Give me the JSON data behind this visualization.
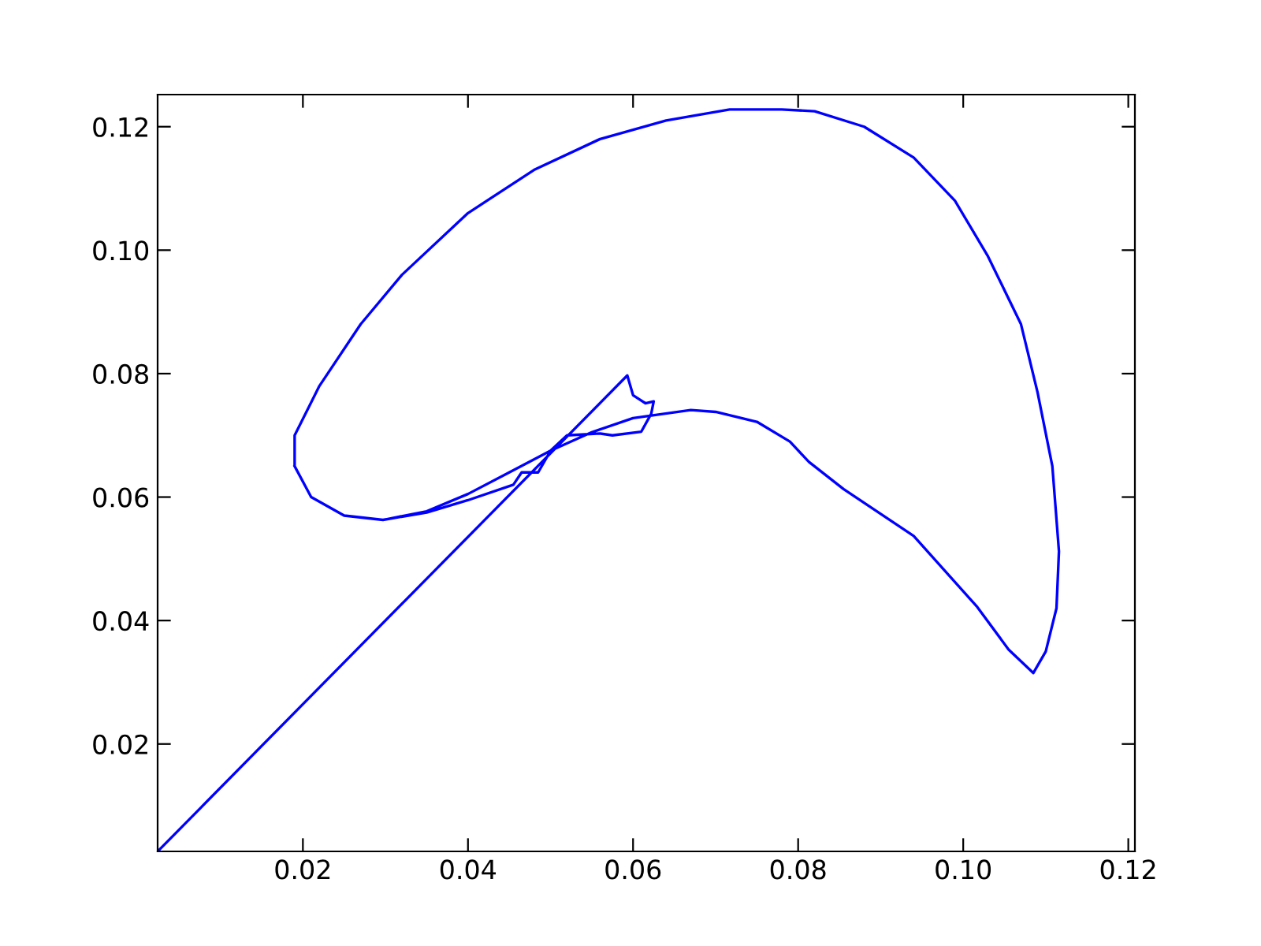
{
  "chart_data": {
    "type": "line",
    "series": [
      {
        "color": "#0000ff",
        "x": [
          0.0024,
          0.0593,
          0.06,
          0.0615,
          0.0625,
          0.0622,
          0.061,
          0.0575,
          0.056,
          0.052,
          0.05,
          0.0485,
          0.0465,
          0.0455,
          0.04,
          0.035,
          0.0297,
          0.025,
          0.021,
          0.019,
          0.019,
          0.022,
          0.027,
          0.032,
          0.04,
          0.048,
          0.056,
          0.064,
          0.0717,
          0.078,
          0.082,
          0.088,
          0.094,
          0.099,
          0.103,
          0.107,
          0.109,
          0.1108,
          0.1116,
          0.1113,
          0.11,
          0.1085,
          0.1055,
          0.1017,
          0.094,
          0.0855,
          0.0813,
          0.079,
          0.075,
          0.07,
          0.067,
          0.06,
          0.055,
          0.05,
          0.045,
          0.04,
          0.035,
          0.0297,
          0.025,
          0.021,
          0.019
        ],
        "values": [
          0.0026,
          0.0797,
          0.0765,
          0.0752,
          0.0755,
          0.0735,
          0.0706,
          0.07,
          0.0703,
          0.07,
          0.0675,
          0.064,
          0.064,
          0.062,
          0.0595,
          0.0575,
          0.0563,
          0.057,
          0.06,
          0.065,
          0.07,
          0.078,
          0.088,
          0.096,
          0.106,
          0.113,
          0.118,
          0.121,
          0.1228,
          0.1228,
          0.1225,
          0.12,
          0.115,
          0.108,
          0.099,
          0.088,
          0.077,
          0.065,
          0.0512,
          0.042,
          0.035,
          0.0315,
          0.0353,
          0.0422,
          0.0537,
          0.0613,
          0.0657,
          0.069,
          0.0722,
          0.0738,
          0.0741,
          0.0728,
          0.0705,
          0.0675,
          0.064,
          0.0605,
          0.0577,
          0.0563,
          0.057,
          0.06,
          0.065
        ]
      }
    ],
    "xlim": [
      0.0024,
      0.1208
    ],
    "ylim": [
      0.0026,
      0.1252
    ],
    "xticks": [
      0.02,
      0.04,
      0.06,
      0.08,
      {
        "value": 0.1,
        "label": "0.10"
      },
      0.12
    ],
    "yticks": [
      0.02,
      0.04,
      0.06,
      0.08,
      {
        "value": 0.1,
        "label": "0.10"
      },
      0.12
    ]
  }
}
